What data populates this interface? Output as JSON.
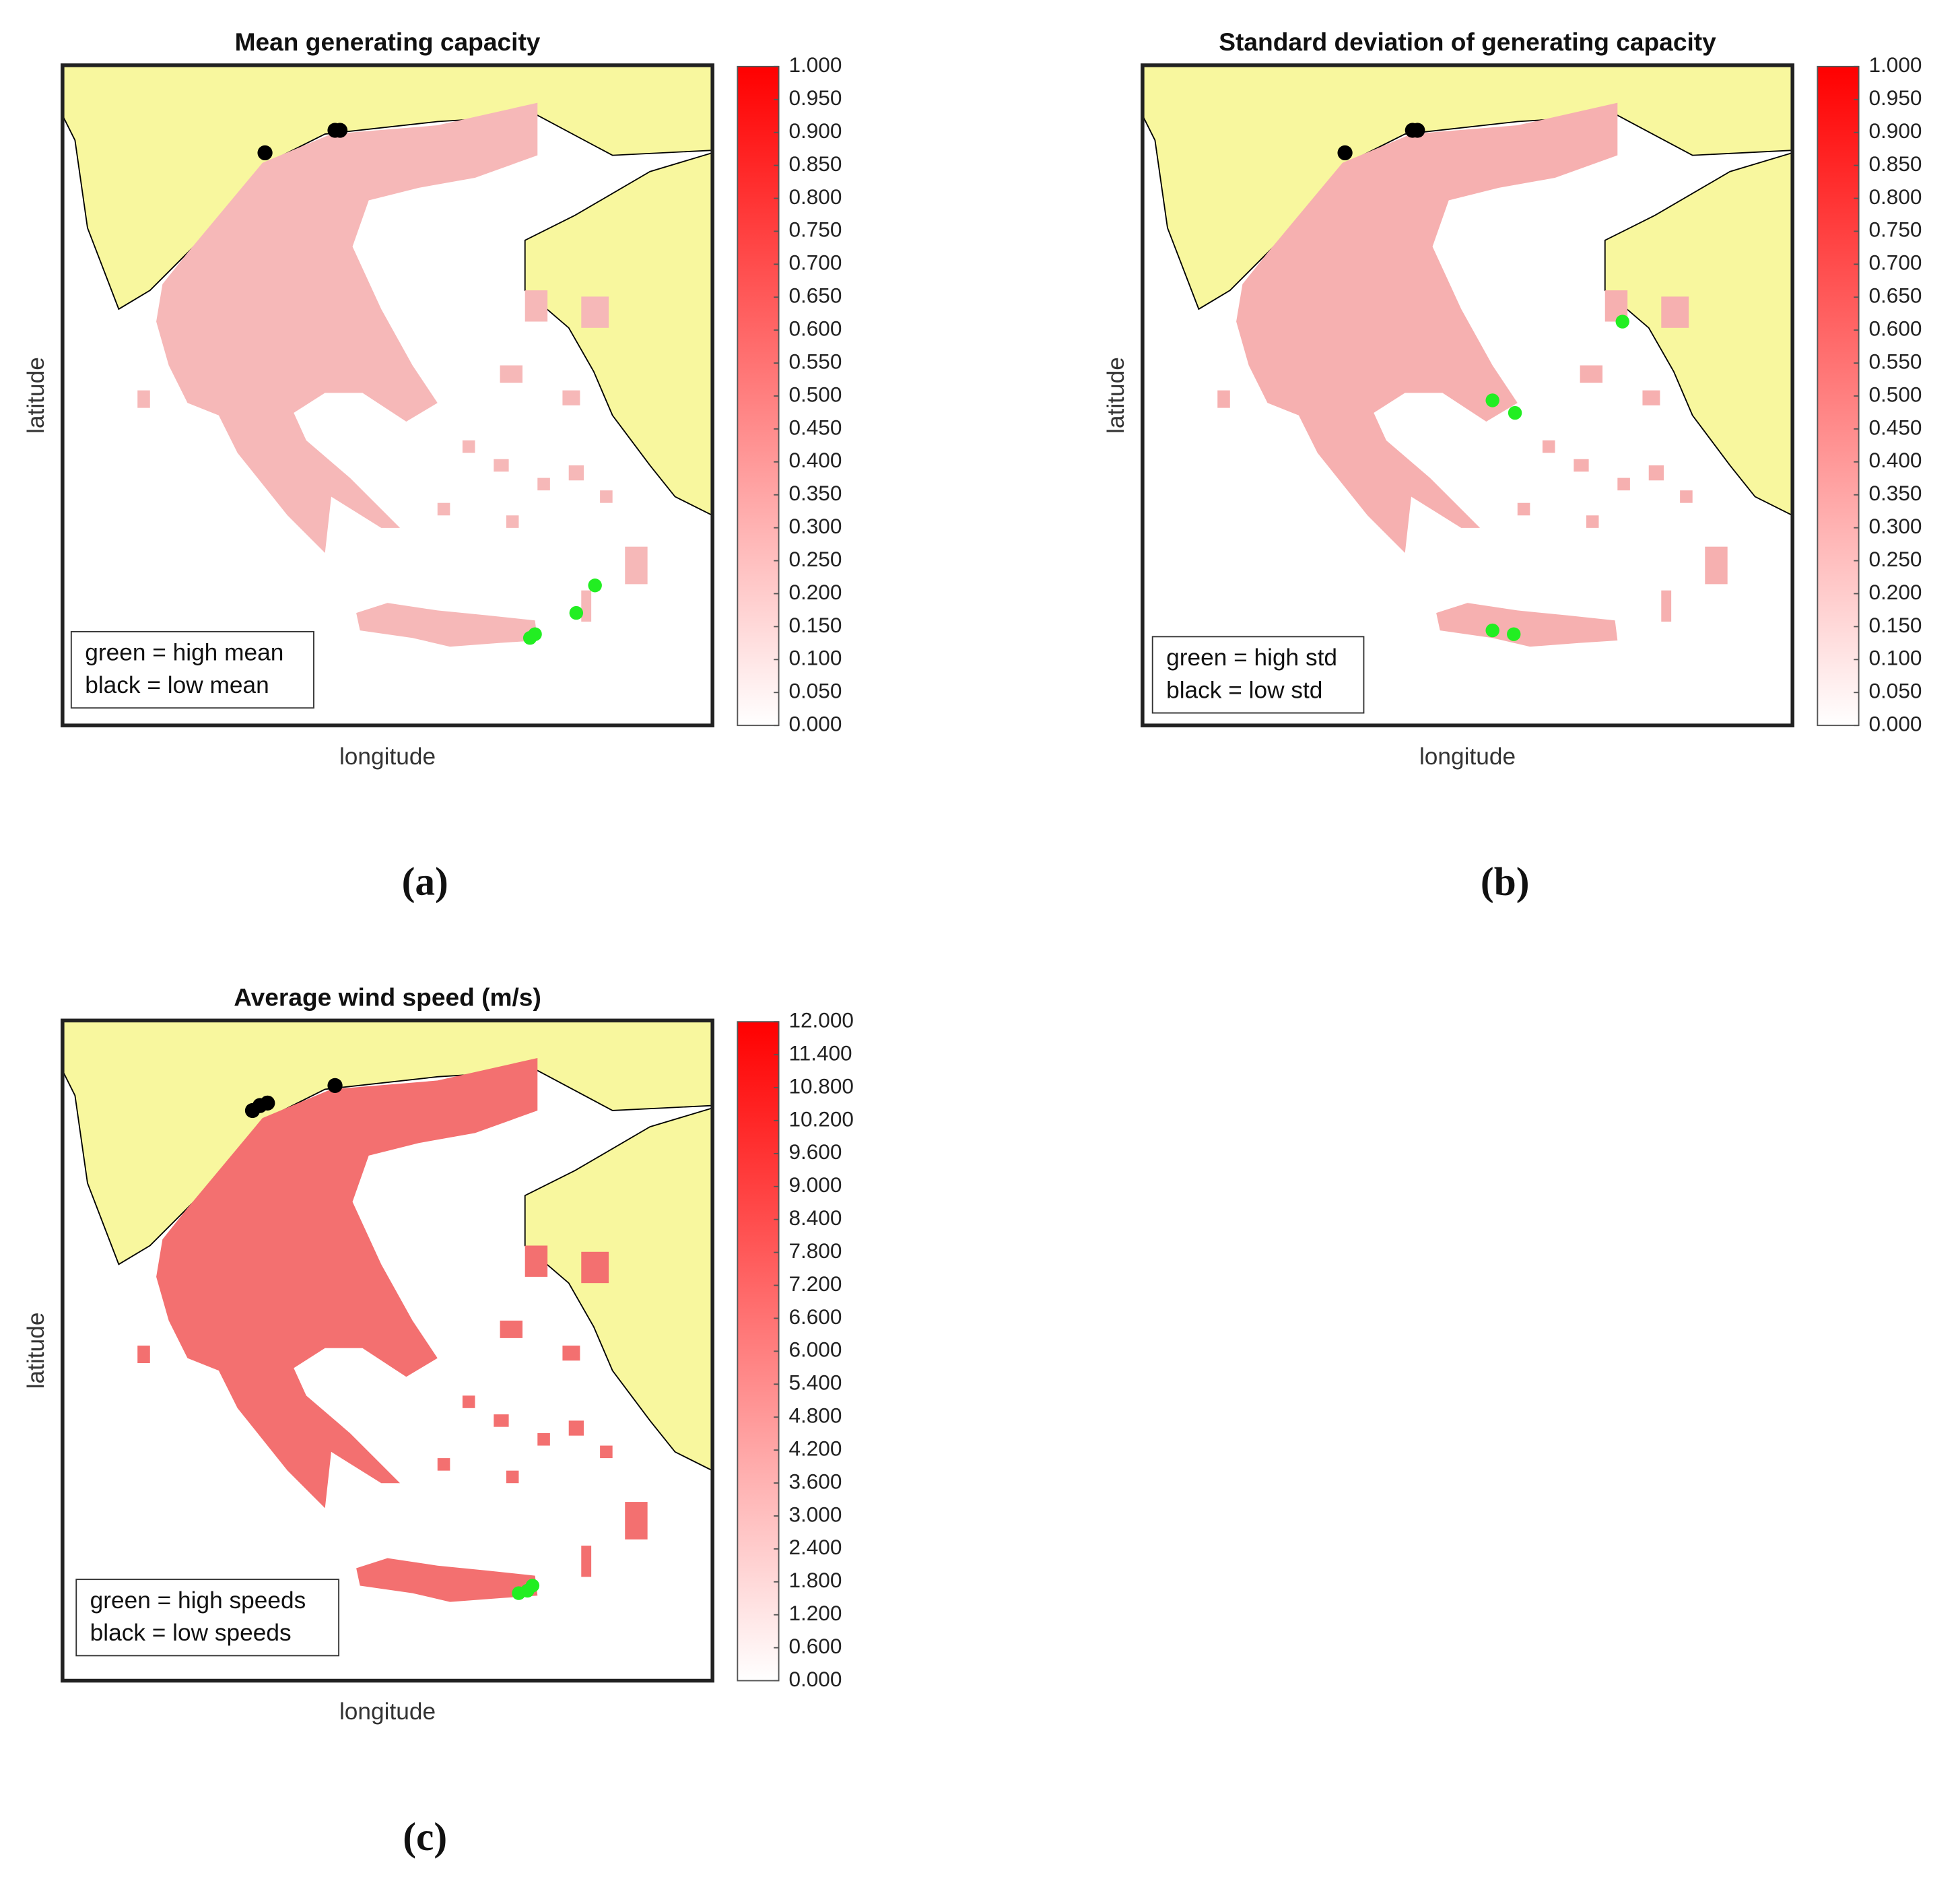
{
  "chart_data": [
    {
      "type": "map",
      "title": "Mean generating capacity",
      "xlabel": "longitude",
      "ylabel": "latitude",
      "legend": [
        "green = high mean",
        "black = low mean"
      ],
      "label": "(a)",
      "color": "#f6b8b8",
      "cmap": [
        "#ffffff",
        "#ff0000"
      ],
      "clim": [
        0,
        1
      ],
      "cticks": [
        {
          "value": 0,
          "label": "0.000"
        },
        {
          "value": 0.05,
          "label": "0.050"
        },
        {
          "value": 0.1,
          "label": "0.100"
        },
        {
          "value": 0.15,
          "label": "0.150"
        },
        {
          "value": 0.2,
          "label": "0.200"
        },
        {
          "value": 0.25,
          "label": "0.250"
        },
        {
          "value": 0.3,
          "label": "0.300"
        },
        {
          "value": 0.35,
          "label": "0.350"
        },
        {
          "value": 0.4,
          "label": "0.400"
        },
        {
          "value": 0.45,
          "label": "0.450"
        },
        {
          "value": 0.5,
          "label": "0.500"
        },
        {
          "value": 0.55,
          "label": "0.550"
        },
        {
          "value": 0.6,
          "label": "0.600"
        },
        {
          "value": 0.65,
          "label": "0.650"
        },
        {
          "value": 0.7,
          "label": "0.700"
        },
        {
          "value": 0.75,
          "label": "0.750"
        },
        {
          "value": 0.8,
          "label": "0.800"
        },
        {
          "value": 0.85,
          "label": "0.850"
        },
        {
          "value": 0.9,
          "label": "0.900"
        },
        {
          "value": 0.95,
          "label": "0.950"
        },
        {
          "value": 1,
          "label": "1.000"
        }
      ]
    },
    {
      "type": "map",
      "title": "Standard deviation of generating capacity",
      "xlabel": "longitude",
      "ylabel": "latitude",
      "legend": [
        "green = high std",
        "black = low std"
      ],
      "label": "(b)",
      "color": "#f6b0b0",
      "cmap": [
        "#ffffff",
        "#ff0000"
      ],
      "clim": [
        0,
        1
      ],
      "cticks": [
        {
          "value": 0,
          "label": "0.000"
        },
        {
          "value": 0.05,
          "label": "0.050"
        },
        {
          "value": 0.1,
          "label": "0.100"
        },
        {
          "value": 0.15,
          "label": "0.150"
        },
        {
          "value": 0.2,
          "label": "0.200"
        },
        {
          "value": 0.25,
          "label": "0.250"
        },
        {
          "value": 0.3,
          "label": "0.300"
        },
        {
          "value": 0.35,
          "label": "0.350"
        },
        {
          "value": 0.4,
          "label": "0.400"
        },
        {
          "value": 0.45,
          "label": "0.450"
        },
        {
          "value": 0.5,
          "label": "0.500"
        },
        {
          "value": 0.55,
          "label": "0.550"
        },
        {
          "value": 0.6,
          "label": "0.600"
        },
        {
          "value": 0.65,
          "label": "0.650"
        },
        {
          "value": 0.7,
          "label": "0.700"
        },
        {
          "value": 0.75,
          "label": "0.750"
        },
        {
          "value": 0.8,
          "label": "0.800"
        },
        {
          "value": 0.85,
          "label": "0.850"
        },
        {
          "value": 0.9,
          "label": "0.900"
        },
        {
          "value": 0.95,
          "label": "0.950"
        },
        {
          "value": 1,
          "label": "1.000"
        }
      ]
    },
    {
      "type": "map",
      "title": "Average wind speed (m/s)",
      "xlabel": "longitude",
      "ylabel": "latitude",
      "legend": [
        "green = high speeds",
        "black = low speeds"
      ],
      "label": "(c)",
      "color": "#f37070",
      "cmap": [
        "#ffffff",
        "#ff0000"
      ],
      "clim": [
        0,
        12
      ],
      "cticks": [
        {
          "value": 0,
          "label": "0.000"
        },
        {
          "value": 0.6,
          "label": "0.600"
        },
        {
          "value": 1.2,
          "label": "1.200"
        },
        {
          "value": 1.8,
          "label": "1.800"
        },
        {
          "value": 2.4,
          "label": "2.400"
        },
        {
          "value": 3,
          "label": "3.000"
        },
        {
          "value": 3.6,
          "label": "3.600"
        },
        {
          "value": 4.2,
          "label": "4.200"
        },
        {
          "value": 4.8,
          "label": "4.800"
        },
        {
          "value": 5.4,
          "label": "5.400"
        },
        {
          "value": 6,
          "label": "6.000"
        },
        {
          "value": 6.6,
          "label": "6.600"
        },
        {
          "value": 7.2,
          "label": "7.200"
        },
        {
          "value": 7.8,
          "label": "7.800"
        },
        {
          "value": 8.4,
          "label": "8.400"
        },
        {
          "value": 9,
          "label": "9.000"
        },
        {
          "value": 9.6,
          "label": "9.600"
        },
        {
          "value": 10.2,
          "label": "10.200"
        },
        {
          "value": 10.8,
          "label": "10.800"
        },
        {
          "value": 11.4,
          "label": "11.400"
        },
        {
          "value": 12,
          "label": "12.000"
        }
      ]
    }
  ]
}
